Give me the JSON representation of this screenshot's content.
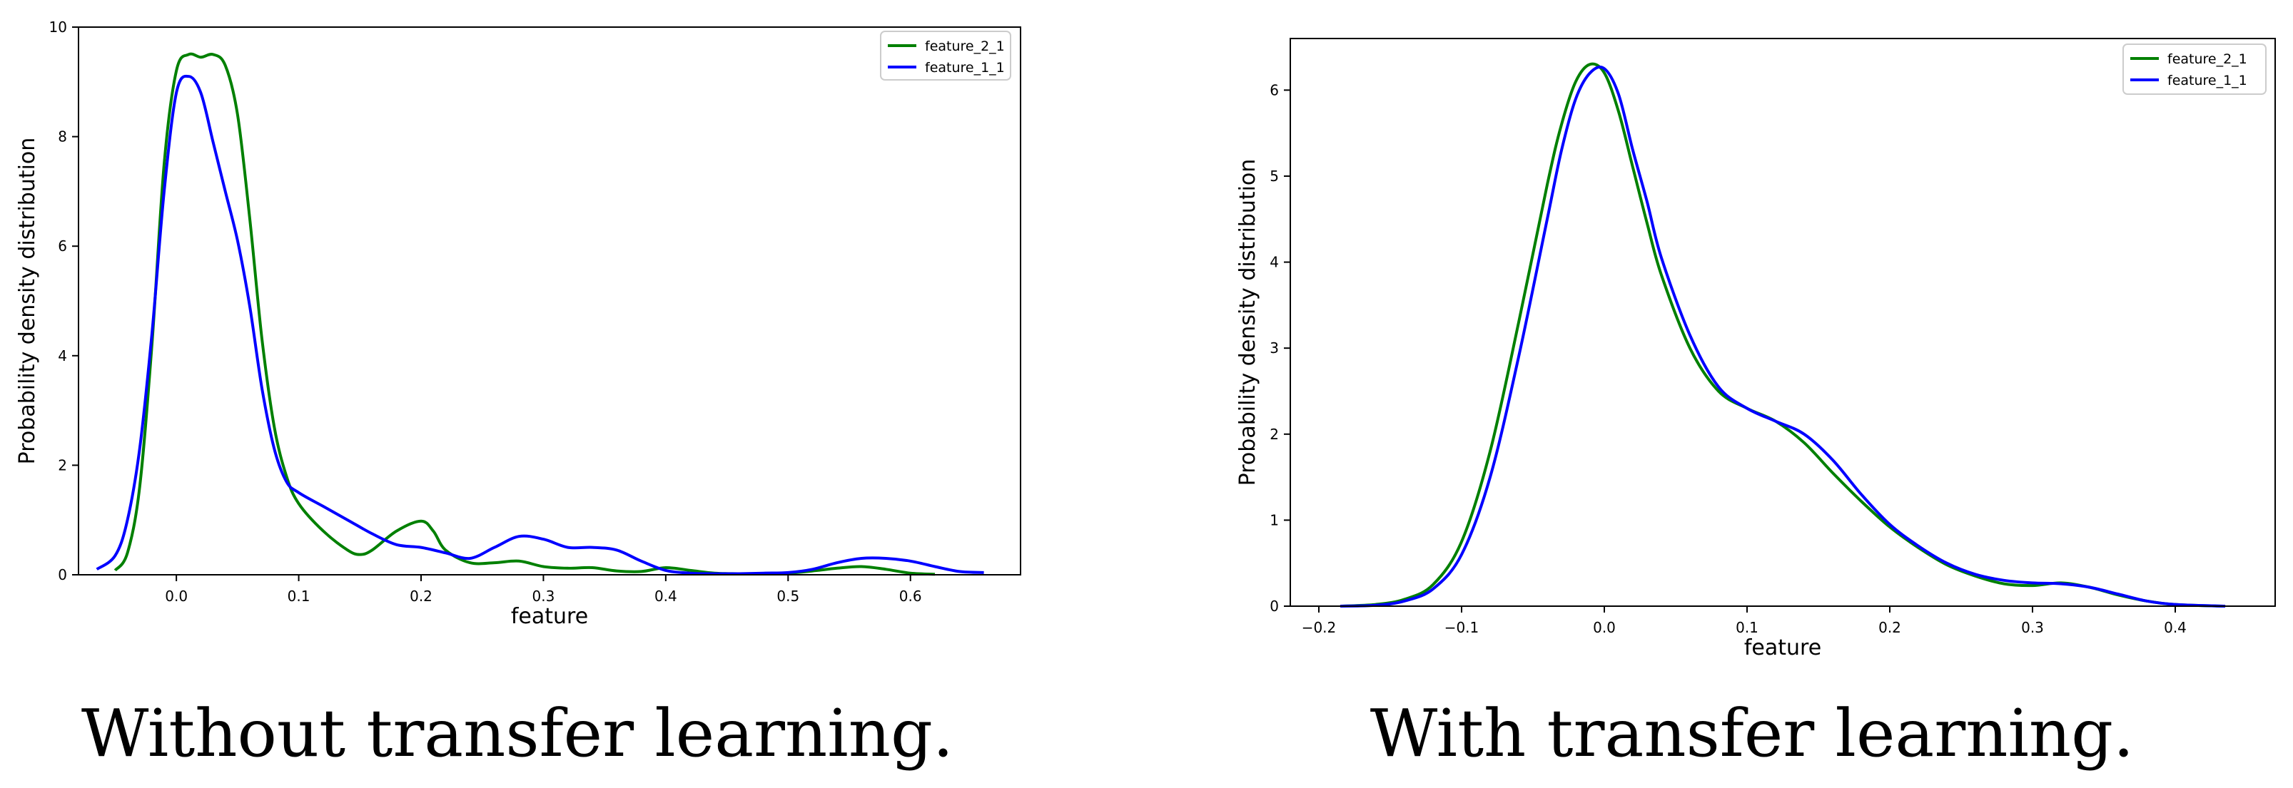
{
  "figure_captions": [
    "Without transfer learning.",
    "With transfer learning."
  ],
  "colors": {
    "feature_2_1": "#008000",
    "feature_1_1": "#0000ff"
  },
  "chart_data": [
    {
      "type": "line",
      "title": "",
      "xlabel": "feature",
      "ylabel": "Probability density distribution",
      "xlim": [
        -0.08,
        0.69
      ],
      "ylim": [
        0,
        10
      ],
      "xticks": [
        0.0,
        0.1,
        0.2,
        0.3,
        0.4,
        0.5,
        0.6
      ],
      "xtick_labels": [
        "0.0",
        "0.1",
        "0.2",
        "0.3",
        "0.4",
        "0.5",
        "0.6"
      ],
      "yticks": [
        0,
        2,
        4,
        6,
        8,
        10
      ],
      "ytick_labels": [
        "0",
        "2",
        "4",
        "6",
        "8",
        "10"
      ],
      "legend_position": "top-right",
      "series": [
        {
          "name": "feature_2_1",
          "color": "#008000",
          "x": [
            -0.05,
            -0.04,
            -0.03,
            -0.02,
            -0.01,
            0.0,
            0.01,
            0.02,
            0.03,
            0.04,
            0.05,
            0.06,
            0.07,
            0.08,
            0.09,
            0.1,
            0.12,
            0.14,
            0.15,
            0.16,
            0.18,
            0.2,
            0.21,
            0.22,
            0.24,
            0.26,
            0.28,
            0.3,
            0.32,
            0.34,
            0.36,
            0.38,
            0.4,
            0.42,
            0.44,
            0.46,
            0.48,
            0.5,
            0.52,
            0.54,
            0.56,
            0.58,
            0.6,
            0.62
          ],
          "y": [
            0.08,
            0.4,
            1.6,
            4.2,
            7.5,
            9.2,
            9.5,
            9.45,
            9.5,
            9.3,
            8.4,
            6.5,
            4.3,
            2.7,
            1.8,
            1.3,
            0.8,
            0.45,
            0.37,
            0.45,
            0.8,
            0.98,
            0.8,
            0.45,
            0.22,
            0.22,
            0.25,
            0.15,
            0.12,
            0.13,
            0.07,
            0.06,
            0.13,
            0.08,
            0.03,
            0.02,
            0.02,
            0.03,
            0.07,
            0.12,
            0.15,
            0.1,
            0.03,
            0.01
          ]
        },
        {
          "name": "feature_1_1",
          "color": "#0000ff",
          "x": [
            -0.065,
            -0.05,
            -0.04,
            -0.03,
            -0.02,
            -0.01,
            0.0,
            0.01,
            0.02,
            0.03,
            0.04,
            0.05,
            0.06,
            0.07,
            0.08,
            0.09,
            0.1,
            0.12,
            0.14,
            0.16,
            0.18,
            0.2,
            0.22,
            0.24,
            0.26,
            0.28,
            0.3,
            0.32,
            0.34,
            0.36,
            0.38,
            0.4,
            0.42,
            0.44,
            0.46,
            0.48,
            0.5,
            0.52,
            0.54,
            0.56,
            0.58,
            0.6,
            0.62,
            0.64,
            0.66
          ],
          "y": [
            0.1,
            0.35,
            1.0,
            2.3,
            4.4,
            7.0,
            8.8,
            9.1,
            8.8,
            7.9,
            7.0,
            6.1,
            4.9,
            3.4,
            2.3,
            1.7,
            1.5,
            1.25,
            1.0,
            0.75,
            0.55,
            0.5,
            0.4,
            0.3,
            0.5,
            0.7,
            0.65,
            0.5,
            0.5,
            0.45,
            0.25,
            0.08,
            0.03,
            0.02,
            0.02,
            0.03,
            0.04,
            0.1,
            0.22,
            0.3,
            0.3,
            0.25,
            0.15,
            0.06,
            0.04
          ]
        }
      ]
    },
    {
      "type": "line",
      "title": "",
      "xlabel": "feature",
      "ylabel": "Probability density distribution",
      "xlim": [
        -0.22,
        0.47
      ],
      "ylim": [
        0,
        6.6
      ],
      "xticks": [
        -0.2,
        -0.1,
        0.0,
        0.1,
        0.2,
        0.3,
        0.4
      ],
      "xtick_labels": [
        "−0.2",
        "−0.1",
        "0.0",
        "0.1",
        "0.2",
        "0.3",
        "0.4"
      ],
      "yticks": [
        0,
        1,
        2,
        3,
        4,
        5,
        6
      ],
      "ytick_labels": [
        "0",
        "1",
        "2",
        "3",
        "4",
        "5",
        "6"
      ],
      "legend_position": "top-right",
      "series": [
        {
          "name": "feature_2_1",
          "color": "#008000",
          "x": [
            -0.185,
            -0.16,
            -0.14,
            -0.12,
            -0.1,
            -0.08,
            -0.06,
            -0.04,
            -0.03,
            -0.02,
            -0.01,
            0.0,
            0.01,
            0.02,
            0.03,
            0.04,
            0.06,
            0.08,
            0.1,
            0.12,
            0.14,
            0.16,
            0.18,
            0.2,
            0.22,
            0.24,
            0.26,
            0.28,
            0.3,
            0.32,
            0.34,
            0.36,
            0.38,
            0.4,
            0.435
          ],
          "y": [
            0.0,
            0.02,
            0.08,
            0.25,
            0.75,
            1.8,
            3.3,
            4.9,
            5.6,
            6.1,
            6.3,
            6.2,
            5.75,
            5.1,
            4.45,
            3.85,
            3.0,
            2.5,
            2.3,
            2.15,
            1.9,
            1.55,
            1.22,
            0.92,
            0.68,
            0.48,
            0.35,
            0.26,
            0.24,
            0.27,
            0.22,
            0.13,
            0.06,
            0.02,
            0.0
          ]
        },
        {
          "name": "feature_1_1",
          "color": "#0000ff",
          "x": [
            -0.185,
            -0.16,
            -0.14,
            -0.12,
            -0.1,
            -0.08,
            -0.06,
            -0.04,
            -0.03,
            -0.02,
            -0.01,
            0.0,
            0.01,
            0.02,
            0.03,
            0.04,
            0.06,
            0.08,
            0.1,
            0.12,
            0.14,
            0.16,
            0.18,
            0.2,
            0.22,
            0.24,
            0.26,
            0.28,
            0.3,
            0.32,
            0.34,
            0.36,
            0.38,
            0.4,
            0.435
          ],
          "y": [
            0.0,
            0.01,
            0.06,
            0.2,
            0.6,
            1.5,
            2.9,
            4.5,
            5.3,
            5.9,
            6.2,
            6.25,
            5.95,
            5.3,
            4.7,
            4.05,
            3.15,
            2.55,
            2.3,
            2.15,
            2.0,
            1.7,
            1.3,
            0.95,
            0.7,
            0.5,
            0.37,
            0.3,
            0.27,
            0.26,
            0.22,
            0.14,
            0.06,
            0.02,
            0.0
          ]
        }
      ]
    }
  ]
}
